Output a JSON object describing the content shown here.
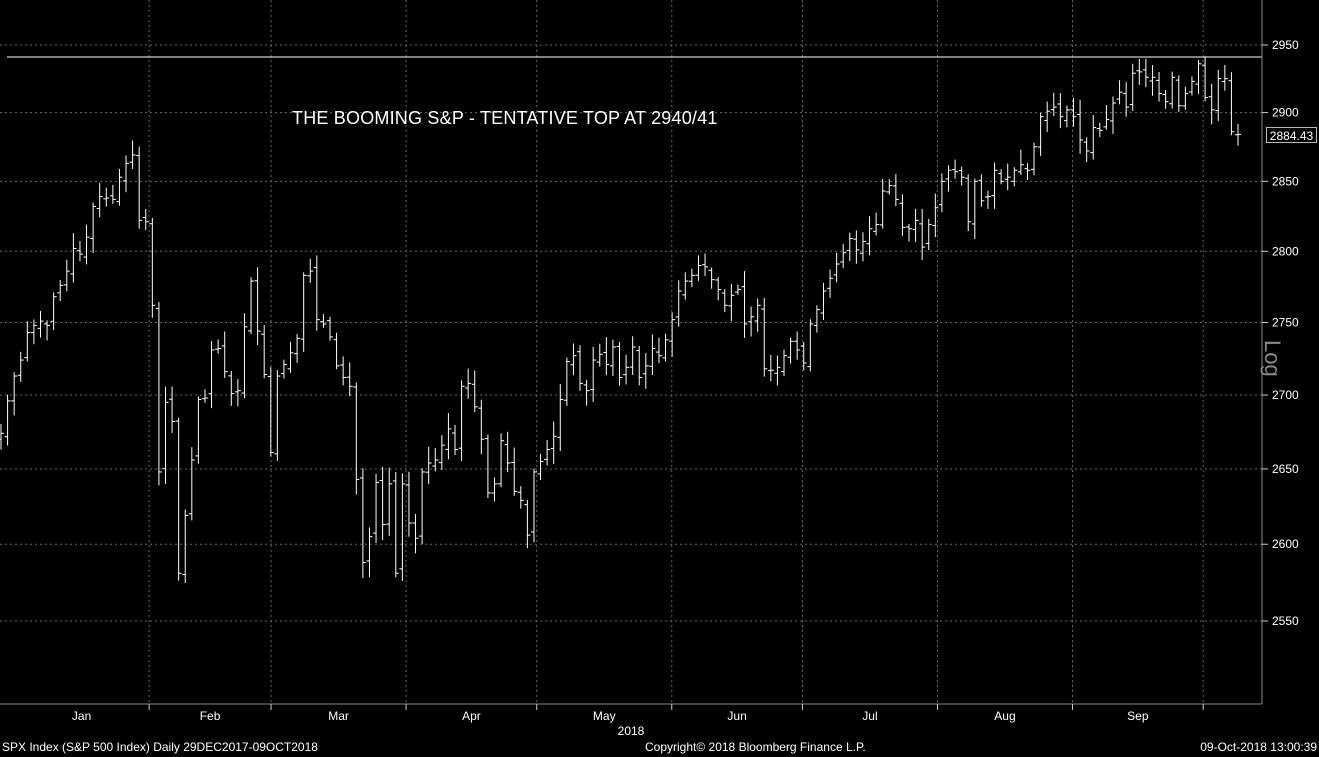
{
  "annotation": "THE BOOMING S&P - TENTATIVE TOP AT 2940/41",
  "footer": {
    "left": "SPX Index (S&P 500 Index)  Daily 29DEC2017-09OCT2018",
    "center": "Copyright© 2018 Bloomberg Finance L.P.",
    "right": "09-Oct-2018 13:00:39"
  },
  "axis_scale_label": "Log",
  "last_price_label": "2884.43",
  "colors": {
    "background": "#000000",
    "bars": "#ffffff",
    "grid": "#666666"
  },
  "chart_data": {
    "type": "ohlc",
    "title": "",
    "ylabel": "",
    "xlabel": "",
    "y_scale": "log",
    "ylim": [
      2500,
      2990
    ],
    "yticks": [
      2550,
      2600,
      2650,
      2700,
      2750,
      2800,
      2850,
      2900,
      2950
    ],
    "xticks": [
      "Jan",
      "Feb",
      "Mar",
      "Apr",
      "May",
      "Jun",
      "Jul",
      "Aug",
      "Sep"
    ],
    "year_label": "2018",
    "resistance_level": 2941,
    "last_value": 2884.43,
    "series": [
      {
        "start": "2017-12-29",
        "end": "2018-10-09",
        "frequency": "trading days",
        "close": [
          2674,
          2696,
          2713,
          2724,
          2743,
          2748,
          2751,
          2748,
          2768,
          2776,
          2786,
          2802,
          2798,
          2810,
          2832,
          2839,
          2838,
          2837,
          2853,
          2863,
          2869,
          2822,
          2821,
          2762,
          2648,
          2695,
          2682,
          2581,
          2619,
          2656,
          2697,
          2698,
          2731,
          2732,
          2716,
          2701,
          2703,
          2747,
          2779,
          2744,
          2714,
          2661,
          2713,
          2721,
          2729,
          2739,
          2783,
          2786,
          2752,
          2749,
          2740,
          2720,
          2712,
          2706,
          2643,
          2588,
          2605,
          2641,
          2613,
          2640,
          2581,
          2640,
          2614,
          2604,
          2648,
          2654,
          2656,
          2666,
          2677,
          2663,
          2706,
          2708,
          2692,
          2670,
          2634,
          2640,
          2669,
          2654,
          2635,
          2629,
          2606,
          2648,
          2655,
          2663,
          2672,
          2697,
          2723,
          2727,
          2708,
          2703,
          2724,
          2728,
          2721,
          2733,
          2712,
          2719,
          2733,
          2712,
          2720,
          2732,
          2727,
          2738,
          2752,
          2772,
          2779,
          2783,
          2790,
          2789,
          2780,
          2773,
          2762,
          2769,
          2773,
          2749,
          2754,
          2762,
          2718,
          2717,
          2719,
          2727,
          2737,
          2731,
          2722,
          2749,
          2759,
          2772,
          2781,
          2791,
          2799,
          2809,
          2801,
          2807,
          2816,
          2819,
          2843,
          2847,
          2837,
          2817,
          2816,
          2822,
          2803,
          2819,
          2831,
          2850,
          2858,
          2857,
          2853,
          2821,
          2850,
          2836,
          2839,
          2858,
          2850,
          2853,
          2858,
          2862,
          2858,
          2875,
          2897,
          2901,
          2904,
          2897,
          2902,
          2897,
          2880,
          2872,
          2889,
          2887,
          2895,
          2907,
          2915,
          2904,
          2929,
          2930,
          2926,
          2926,
          2914,
          2908,
          2926,
          2905,
          2914,
          2923,
          2936,
          2911,
          2902,
          2925,
          2925,
          2886,
          2884
        ]
      }
    ]
  }
}
